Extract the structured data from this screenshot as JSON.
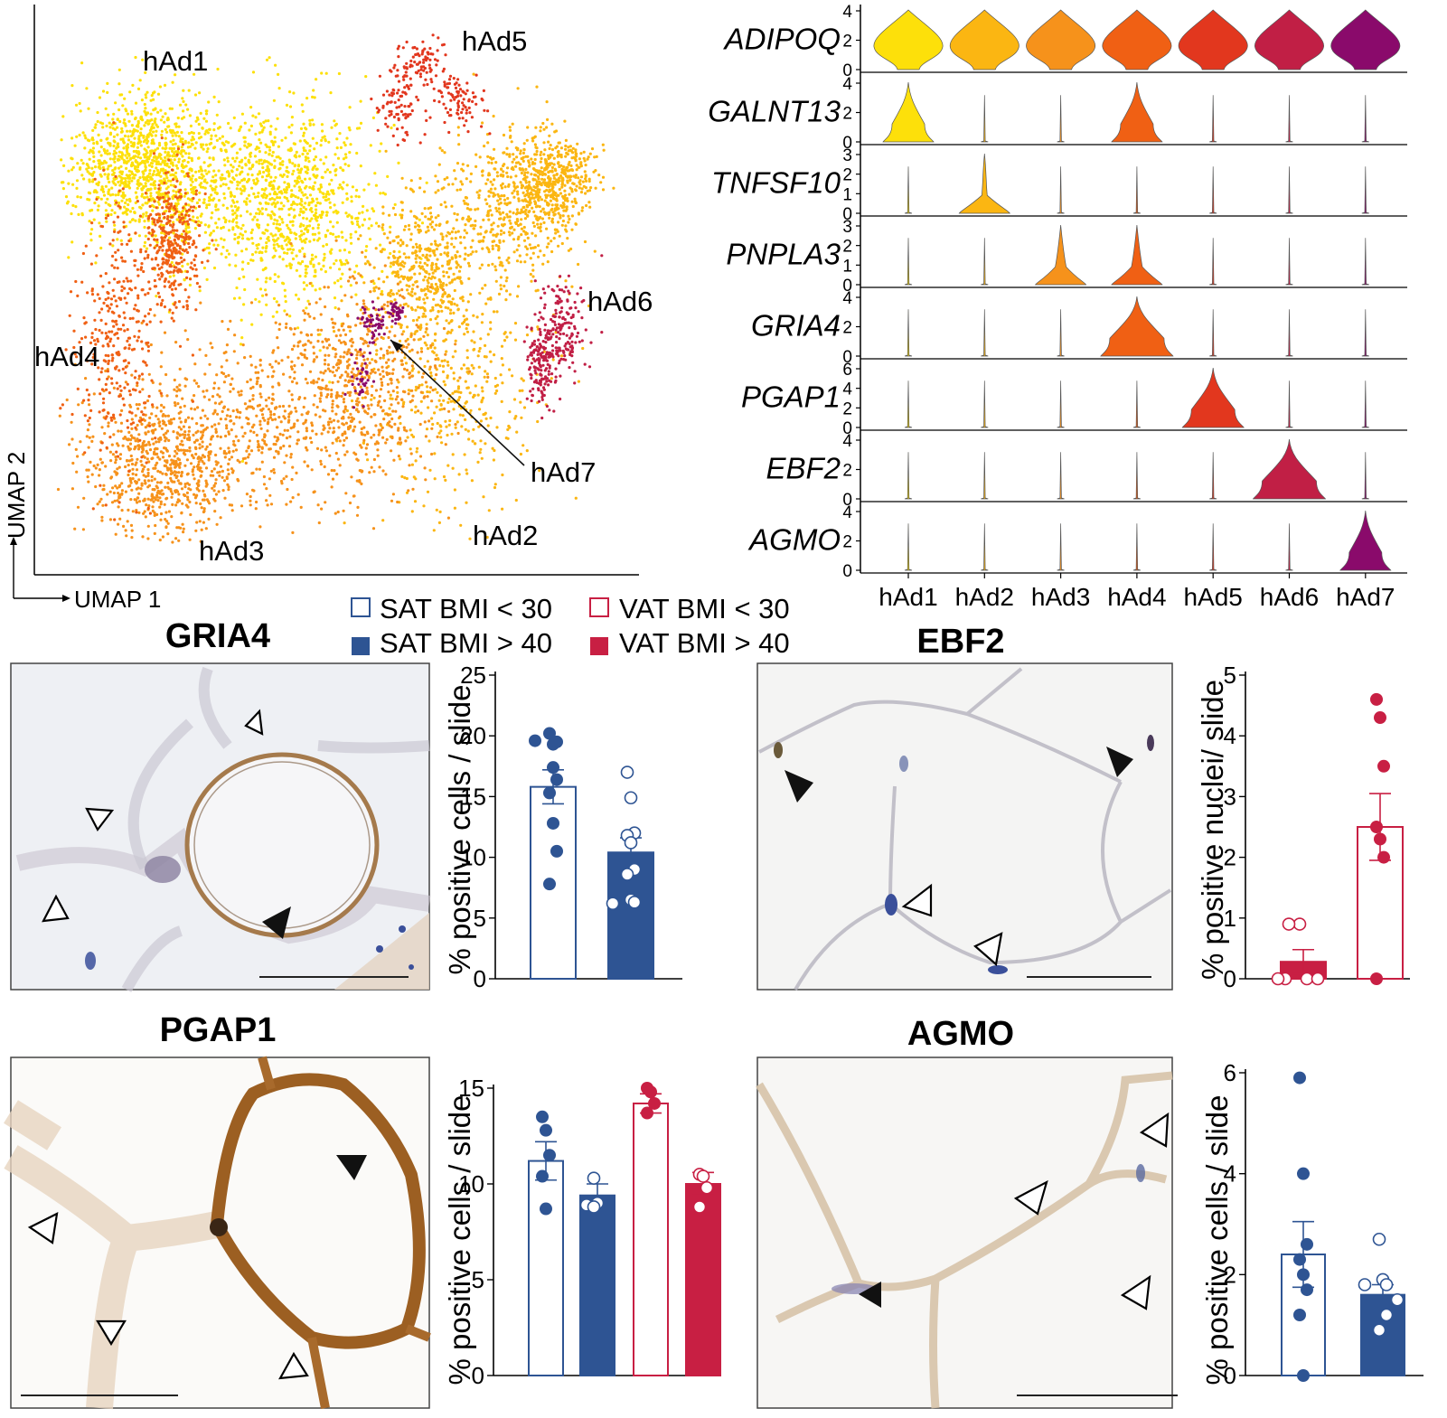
{
  "umap": {
    "x_axis_label": "UMAP 1",
    "y_axis_label": "UMAP 2",
    "cluster_labels": [
      "hAd1",
      "hAd2",
      "hAd3",
      "hAd4",
      "hAd5",
      "hAd6",
      "hAd7"
    ]
  },
  "colors": {
    "hAd1": "#fde00a",
    "hAd2": "#fbb612",
    "hAd3": "#f6921b",
    "hAd4": "#f06014",
    "hAd5": "#e2371e",
    "hAd6": "#c11f45",
    "hAd7": "#8a0a6b",
    "sat": "#2e5493",
    "vat": "#c81f43"
  },
  "violin": {
    "clusters": [
      "hAd1",
      "hAd2",
      "hAd3",
      "hAd4",
      "hAd5",
      "hAd6",
      "hAd7"
    ],
    "genes": [
      {
        "name": "ADIPOQ",
        "ticks": [
          "4",
          "2",
          "0"
        ],
        "ymax": 4,
        "expression": [
          1,
          1,
          1,
          1,
          1,
          1,
          1
        ]
      },
      {
        "name": "GALNT13",
        "ticks": [
          "4",
          "2",
          "0"
        ],
        "ymax": 4,
        "expression": [
          1,
          0,
          0,
          1,
          0,
          0,
          0
        ]
      },
      {
        "name": "TNFSF10",
        "ticks": [
          "3",
          "2",
          "1",
          "0"
        ],
        "ymax": 3,
        "expression": [
          0,
          1,
          0,
          0,
          0,
          0,
          0
        ]
      },
      {
        "name": "PNPLA3",
        "ticks": [
          "3",
          "2",
          "1",
          "0"
        ],
        "ymax": 3,
        "expression": [
          0,
          0,
          1,
          1,
          0,
          0,
          0
        ]
      },
      {
        "name": "GRIA4",
        "ticks": [
          "4",
          "2",
          "0"
        ],
        "ymax": 4,
        "expression": [
          0,
          0,
          0,
          1,
          0,
          0,
          0
        ]
      },
      {
        "name": "PGAP1",
        "ticks": [
          "6",
          "4",
          "2",
          "0"
        ],
        "ymax": 6,
        "expression": [
          0,
          0,
          0,
          0,
          1,
          0,
          0
        ]
      },
      {
        "name": "EBF2",
        "ticks": [
          "4",
          "2",
          "0"
        ],
        "ymax": 4,
        "expression": [
          0,
          0,
          0,
          0,
          0,
          1,
          0
        ]
      },
      {
        "name": "AGMO",
        "ticks": [
          "4",
          "2",
          "0"
        ],
        "ymax": 4,
        "expression": [
          0,
          0,
          0,
          0,
          0,
          0,
          1
        ]
      }
    ]
  },
  "legend": {
    "sat_lean": "SAT BMI < 30",
    "sat_obese": "SAT BMI > 40",
    "vat_lean": "VAT BMI < 30",
    "vat_obese": "VAT BMI > 40"
  },
  "panels": {
    "gria4": {
      "title": "GRIA4",
      "ylabel": "% positive cells / slide"
    },
    "ebf2": {
      "title": "EBF2",
      "ylabel": "% positive nuclei/ slide"
    },
    "pgap1": {
      "title": "PGAP1",
      "ylabel": "% positive cells / slide"
    },
    "agmo": {
      "title": "AGMO",
      "ylabel": "% positive cells / slide"
    }
  },
  "chart_data": [
    {
      "type": "bar",
      "title": "GRIA4",
      "ylabel": "% positive cells / slide",
      "ylim": [
        0,
        25
      ],
      "ticks": [
        0,
        5,
        10,
        15,
        20,
        25
      ],
      "series": [
        {
          "name": "SAT BMI < 30",
          "mean": 15.8,
          "sem": 1.4,
          "points": [
            20.2,
            19.3,
            19.5,
            19.6,
            17.4,
            16.4,
            15.3,
            12.8,
            10.5,
            7.8
          ]
        },
        {
          "name": "SAT BMI > 40",
          "mean": 10.4,
          "sem": 1.2,
          "points": [
            17.0,
            14.9,
            12.0,
            11.8,
            11.2,
            9.0,
            8.6,
            6.5,
            6.3,
            6.2
          ]
        }
      ]
    },
    {
      "type": "bar",
      "title": "EBF2",
      "ylabel": "% positive nuclei/ slide",
      "ylim": [
        0,
        5
      ],
      "ticks": [
        0,
        1,
        2,
        3,
        4,
        5
      ],
      "series": [
        {
          "name": "VAT BMI > 40",
          "mean": 0.28,
          "sem": 0.2,
          "points": [
            0.9,
            0.9,
            0.0,
            0.0,
            0.0,
            0.0
          ]
        },
        {
          "name": "VAT BMI < 30",
          "mean": 2.5,
          "sem": 0.55,
          "points": [
            4.6,
            4.3,
            3.5,
            2.5,
            2.3,
            2.0,
            0.0
          ]
        }
      ]
    },
    {
      "type": "bar",
      "title": "PGAP1",
      "ylabel": "% positive cells / slide",
      "ylim": [
        0,
        15
      ],
      "ticks": [
        0,
        5,
        10,
        15
      ],
      "series": [
        {
          "name": "SAT BMI < 30",
          "mean": 11.2,
          "sem": 1.0,
          "points": [
            13.5,
            12.8,
            11.5,
            10.4,
            8.7
          ]
        },
        {
          "name": "SAT BMI > 40",
          "mean": 9.4,
          "sem": 0.6,
          "points": [
            10.3,
            9.0,
            8.9,
            8.8
          ]
        },
        {
          "name": "VAT BMI < 30",
          "mean": 14.2,
          "sem": 0.5,
          "points": [
            15.0,
            14.8,
            14.2,
            13.7
          ]
        },
        {
          "name": "VAT BMI > 40",
          "mean": 10.0,
          "sem": 0.6,
          "points": [
            10.5,
            10.4,
            9.8,
            8.8
          ]
        }
      ]
    },
    {
      "type": "bar",
      "title": "AGMO",
      "ylabel": "% positive cells / slide",
      "ylim": [
        0,
        6
      ],
      "ticks": [
        0,
        2,
        4,
        6
      ],
      "series": [
        {
          "name": "SAT BMI < 30",
          "mean": 2.4,
          "sem": 0.65,
          "points": [
            5.9,
            4.0,
            2.6,
            2.3,
            2.0,
            1.7,
            1.2,
            0.0
          ]
        },
        {
          "name": "SAT BMI > 40",
          "mean": 1.6,
          "sem": 0.2,
          "points": [
            2.7,
            1.9,
            1.8,
            1.8,
            1.5,
            1.2,
            0.9
          ]
        }
      ]
    }
  ]
}
